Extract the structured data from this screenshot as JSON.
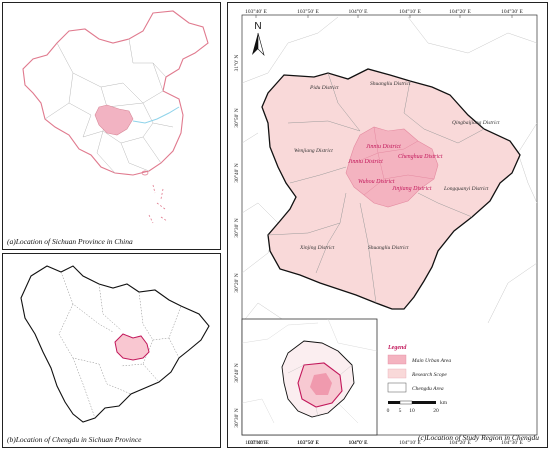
{
  "captions": {
    "a": "(a)Location of Sichuan Province in China",
    "b": "(b)Location of Chengdu in Sichuan Province",
    "c": "(c)Location of Study Region in Chengdu"
  },
  "north_label": "N",
  "top_ticks": [
    "103°40' E",
    "103°50' E",
    "104°0' E",
    "104°10' E",
    "104°20' E",
    "104°30' E"
  ],
  "bottom_ticks": [
    "103°40' E",
    "103°50' E",
    "104°0' E",
    "104°10' E",
    "104°20' E",
    "104°30' E"
  ],
  "left_ticks": [
    "31°0' N",
    "30°50' N",
    "30°40' N",
    "30°30' N",
    "30°20' N"
  ],
  "districts": {
    "pidu": "Pidu District",
    "shuangliu_n": "Shuangliu District",
    "qingbaijiang": "Qingbaijiang District",
    "wenjiang": "Wenjiang District",
    "longquanyi": "Longquanyi District",
    "xinjing": "Xinjing District",
    "shuangliu_s": "Shuangliu District"
  },
  "urban_districts": {
    "jinniu": "Jinniu District",
    "chenghua": "Chenghua District",
    "jinniu2": "Jinniu District",
    "wuhou": "Wuhou District",
    "jinjiang": "Jinjiang District"
  },
  "legend": {
    "title": "Legend",
    "main_urban": "Main  Urban Area",
    "research_scope": "Research Scope",
    "chengdu_area": "Chengdu Area"
  },
  "scale_bar": {
    "labels": [
      "0",
      "5",
      "10",
      "20"
    ],
    "unit": "km"
  },
  "inset_ticks": {
    "bottom": [
      "103°40' E",
      "103°50' E",
      "104°0' E"
    ],
    "left": [
      "30°40' N",
      "30°30' N"
    ]
  },
  "colors": {
    "research_fill": "#f9d9d9",
    "urban_fill": "#f4b3c0",
    "boundary": "#c2185b",
    "sichuan_fill": "#f2b3c2",
    "china_border": "#e07a8e",
    "river": "#8fd3ea"
  }
}
